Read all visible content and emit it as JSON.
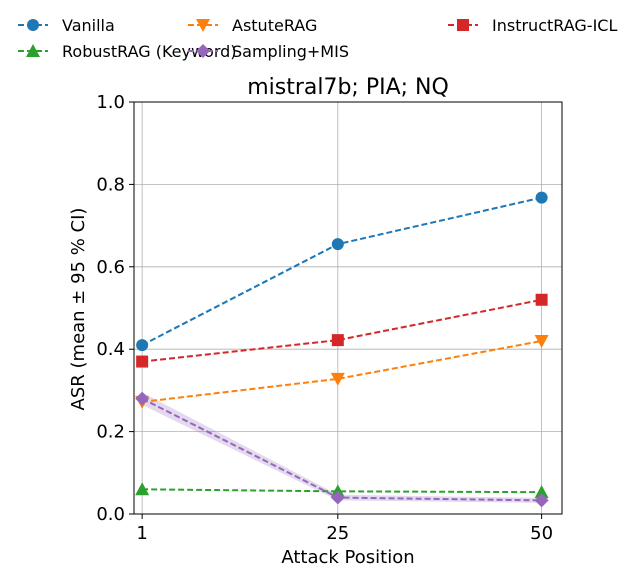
{
  "chart_data": {
    "type": "line",
    "title": "mistral7b; PIA; NQ",
    "xlabel": "Attack Position",
    "ylabel": "ASR (mean ± 95 % CI)",
    "x": [
      1,
      25,
      50
    ],
    "x_tick_labels": [
      "1",
      "25",
      "50"
    ],
    "ylim": [
      0.0,
      1.0
    ],
    "y_ticks": [
      0.0,
      0.2,
      0.4,
      0.6,
      0.8,
      1.0
    ],
    "y_tick_labels": [
      "0.0",
      "0.2",
      "0.4",
      "0.6",
      "0.8",
      "1.0"
    ],
    "grid": true,
    "legend_position": "top, outside plot, 3 columns",
    "series": [
      {
        "name": "Vanilla",
        "color": "#1f77b4",
        "marker": "circle",
        "values": [
          0.41,
          0.655,
          0.768
        ]
      },
      {
        "name": "AstuteRAG",
        "color": "#ff7f0e",
        "marker": "triangle-down",
        "values": [
          0.272,
          0.328,
          0.42
        ]
      },
      {
        "name": "InstructRAG-ICL",
        "color": "#d62728",
        "marker": "square",
        "values": [
          0.37,
          0.422,
          0.52
        ]
      },
      {
        "name": "RobustRAG (Keyword)",
        "color": "#2ca02c",
        "marker": "triangle-up",
        "values": [
          0.06,
          0.055,
          0.053
        ]
      },
      {
        "name": "Sampling+MIS",
        "color": "#9467bd",
        "marker": "diamond",
        "values": [
          0.28,
          0.04,
          0.033
        ],
        "ci_lower": [
          0.265,
          0.033,
          0.027
        ],
        "ci_upper": [
          0.295,
          0.047,
          0.039
        ]
      }
    ]
  }
}
